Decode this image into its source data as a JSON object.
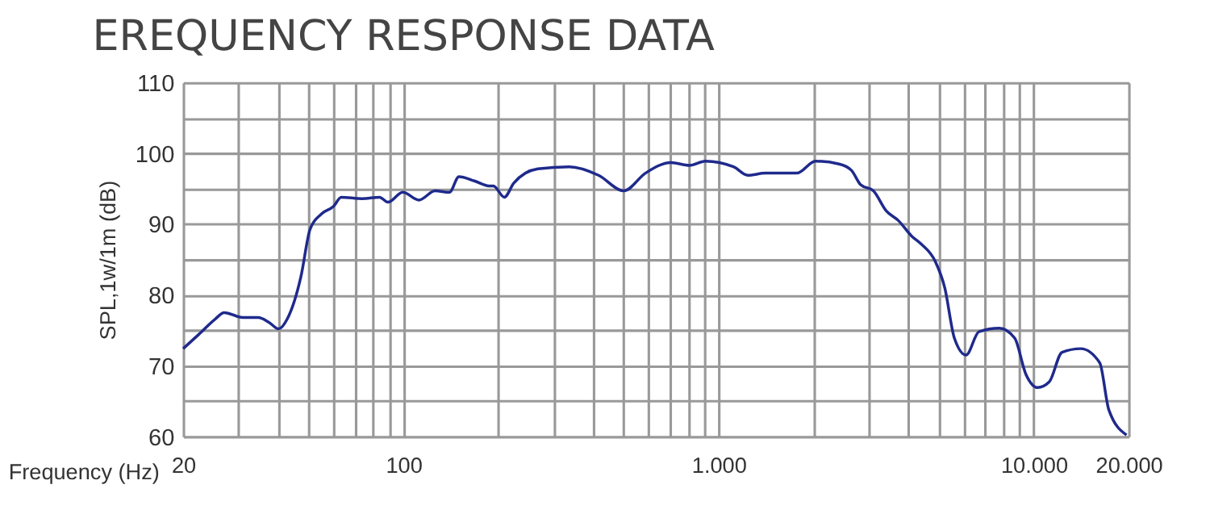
{
  "chart_data": {
    "type": "line",
    "title": "EREQUENCY RESPONSE DATA",
    "xlabel": "Frequency (Hz)",
    "ylabel": "SPL,1w/1m (dB)",
    "log": "x",
    "grid": true,
    "marker": "none",
    "line_style": "solid",
    "xlim": [
      20,
      20000
    ],
    "ylim": [
      60,
      110
    ],
    "xticks": [
      20,
      {
        "value": 30,
        "label": null
      },
      {
        "value": 40,
        "label": null
      },
      {
        "value": 50,
        "label": null
      },
      {
        "value": 60,
        "label": null
      },
      {
        "value": 70,
        "label": null
      },
      {
        "value": 80,
        "label": null
      },
      {
        "value": 90,
        "label": null
      },
      100,
      {
        "value": 200,
        "label": null
      },
      {
        "value": 300,
        "label": null
      },
      {
        "value": 400,
        "label": null
      },
      {
        "value": 500,
        "label": null
      },
      {
        "value": 600,
        "label": null
      },
      {
        "value": 700,
        "label": null
      },
      {
        "value": 800,
        "label": null
      },
      {
        "value": 900,
        "label": null
      },
      {
        "value": 1000,
        "label": "1.000"
      },
      {
        "value": 2000,
        "label": null
      },
      {
        "value": 3000,
        "label": null
      },
      {
        "value": 4000,
        "label": null
      },
      {
        "value": 5000,
        "label": null
      },
      {
        "value": 6000,
        "label": null
      },
      {
        "value": 7000,
        "label": null
      },
      {
        "value": 8000,
        "label": null
      },
      {
        "value": 9000,
        "label": null
      },
      {
        "value": 10000,
        "label": "10.000"
      },
      {
        "value": 20000,
        "label": "20.000"
      }
    ],
    "yticks": [
      60,
      {
        "value": 65,
        "label": null
      },
      70,
      {
        "value": 75,
        "label": null
      },
      80,
      {
        "value": 85,
        "label": null
      },
      90,
      {
        "value": 95,
        "label": null
      },
      100,
      {
        "value": 105,
        "label": null
      },
      110
    ],
    "series": [
      {
        "color": "#1f2a8c",
        "x": [
          20,
          22.4,
          25.3,
          27,
          30.9,
          34.6,
          37.5,
          40.2,
          42.8,
          47.3,
          50.5,
          54.8,
          60,
          63.5,
          74,
          84,
          89.3,
          99.5,
          112,
          126,
          140,
          150,
          168,
          187,
          193,
          209,
          224,
          267,
          336,
          416,
          500,
          586,
          706,
          808,
          908,
          1115,
          1238,
          1408,
          1770,
          2030,
          2410,
          2640,
          2820,
          3100,
          3400,
          3720,
          4100,
          4390,
          4860,
          5220,
          5600,
          6100,
          6700,
          7780,
          8700,
          9440,
          10300,
          11200,
          12300,
          14100,
          16200,
          17300,
          19700
        ],
        "values": [
          72.4,
          74.4,
          76.6,
          77.5,
          76.8,
          76.8,
          76.1,
          75.2,
          76.6,
          82.6,
          89.2,
          91.4,
          92.5,
          93.8,
          93.6,
          93.8,
          93.1,
          94.5,
          93.4,
          94.7,
          94.5,
          96.7,
          96.1,
          95.4,
          95.4,
          93.8,
          95.8,
          97.8,
          98.1,
          96.9,
          94.7,
          97.2,
          98.7,
          98.3,
          98.9,
          98.1,
          96.9,
          97.2,
          97.2,
          98.9,
          98.5,
          97.6,
          95.6,
          94.7,
          91.9,
          90.5,
          88.3,
          87.2,
          84.8,
          81.0,
          73.9,
          71.5,
          74.8,
          75.3,
          73.9,
          68.8,
          66.9,
          67.7,
          71.9,
          72.4,
          70.4,
          63.8,
          60.2
        ]
      }
    ]
  }
}
